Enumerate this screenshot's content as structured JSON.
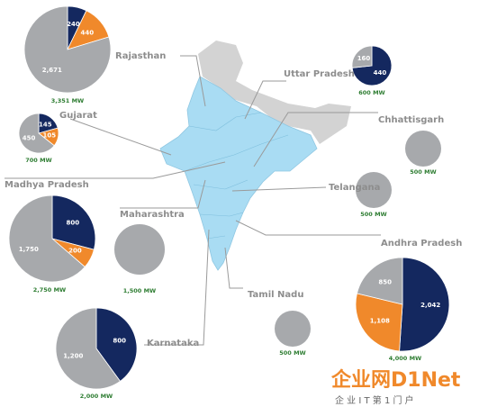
{
  "chart_data": [
    {
      "type": "pie",
      "title": "Rajasthan",
      "total": "3,351 MW",
      "values": [
        240,
        440,
        2671
      ],
      "value_labels": [
        "240",
        "440",
        "2,671"
      ],
      "colors": [
        "#14285f",
        "#f0892b",
        "#a7a9ac"
      ]
    },
    {
      "type": "pie",
      "title": "Uttar Pradesh",
      "total": "600 MW",
      "values": [
        440,
        160
      ],
      "value_labels": [
        "440",
        "160"
      ],
      "colors": [
        "#14285f",
        "#a7a9ac"
      ]
    },
    {
      "type": "pie",
      "title": "Gujarat",
      "total": "700 MW",
      "values": [
        145,
        105,
        450
      ],
      "value_labels": [
        "145",
        "105",
        "450"
      ],
      "colors": [
        "#14285f",
        "#f0892b",
        "#a7a9ac"
      ]
    },
    {
      "type": "pie",
      "title": "Chhattisgarh",
      "total": "500 MW",
      "values": [
        500
      ],
      "colors": [
        "#a7a9ac"
      ]
    },
    {
      "type": "pie",
      "title": "Telangana",
      "total": "500 MW",
      "values": [
        500
      ],
      "colors": [
        "#a7a9ac"
      ]
    },
    {
      "type": "pie",
      "title": "Madhya Pradesh",
      "total": "2,750 MW",
      "values": [
        800,
        200,
        1750
      ],
      "value_labels": [
        "800",
        "200",
        "1,750"
      ],
      "colors": [
        "#14285f",
        "#f0892b",
        "#a7a9ac"
      ]
    },
    {
      "type": "pie",
      "title": "Maharashtra",
      "total": "1,500 MW",
      "values": [
        1500
      ],
      "colors": [
        "#a7a9ac"
      ]
    },
    {
      "type": "pie",
      "title": "Andhra Pradesh",
      "total": "4,000 MW",
      "values": [
        2042,
        1108,
        850
      ],
      "value_labels": [
        "2,042",
        "1,108",
        "850"
      ],
      "colors": [
        "#14285f",
        "#f0892b",
        "#a7a9ac"
      ]
    },
    {
      "type": "pie",
      "title": "Tamil Nadu",
      "total": "500 MW",
      "values": [
        500
      ],
      "colors": [
        "#a7a9ac"
      ]
    },
    {
      "type": "pie",
      "title": "Karnataka",
      "total": "2,000 MW",
      "values": [
        800,
        1200
      ],
      "value_labels": [
        "800",
        "1,200"
      ],
      "colors": [
        "#14285f",
        "#a7a9ac"
      ]
    }
  ],
  "watermark": {
    "brand": "企业网D1Net",
    "slogan": "企 业 I T 第 1 门 户"
  }
}
